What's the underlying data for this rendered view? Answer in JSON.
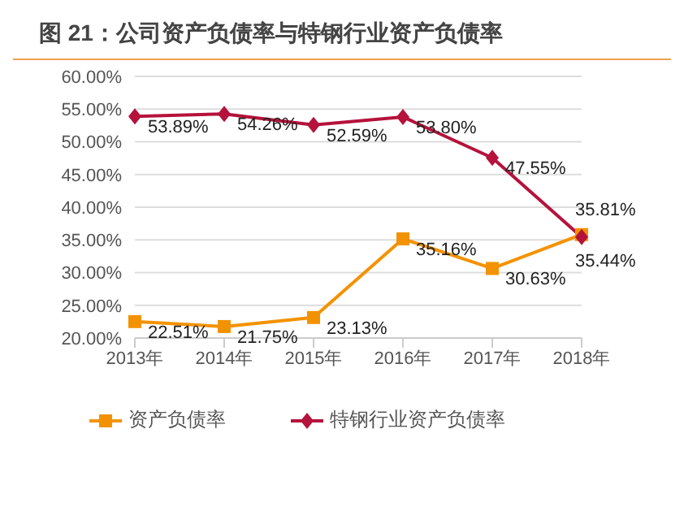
{
  "chart_data": {
    "type": "line",
    "title": "图 21：公司资产负债率与特钢行业资产负债率",
    "categories": [
      "2013年",
      "2014年",
      "2015年",
      "2016年",
      "2017年",
      "2018年"
    ],
    "series": [
      {
        "name": "资产负债率",
        "color": "#f39200",
        "marker": "square",
        "values": [
          22.51,
          21.75,
          23.13,
          35.16,
          30.63,
          35.81
        ],
        "value_labels": [
          "22.51%",
          "21.75%",
          "23.13%",
          "35.16%",
          "30.63%",
          "35.81%"
        ]
      },
      {
        "name": "特钢行业资产负债率",
        "color": "#b5123c",
        "marker": "diamond",
        "values": [
          53.89,
          54.26,
          52.59,
          53.8,
          47.55,
          35.44
        ],
        "value_labels": [
          "53.89%",
          "54.26%",
          "52.59%",
          "53.80%",
          "47.55%",
          "35.44%"
        ]
      }
    ],
    "ylim": [
      20,
      60
    ],
    "yticks": [
      {
        "value": 20,
        "label": "20.00%"
      },
      {
        "value": 25,
        "label": "25.00%"
      },
      {
        "value": 30,
        "label": "30.00%"
      },
      {
        "value": 35,
        "label": "35.00%"
      },
      {
        "value": 40,
        "label": "40.00%"
      },
      {
        "value": 45,
        "label": "45.00%"
      },
      {
        "value": 50,
        "label": "50.00%"
      },
      {
        "value": 55,
        "label": "55.00%"
      },
      {
        "value": 60,
        "label": "60.00%"
      }
    ],
    "grid": "y",
    "legend": "bottom",
    "line_style": "solid"
  }
}
